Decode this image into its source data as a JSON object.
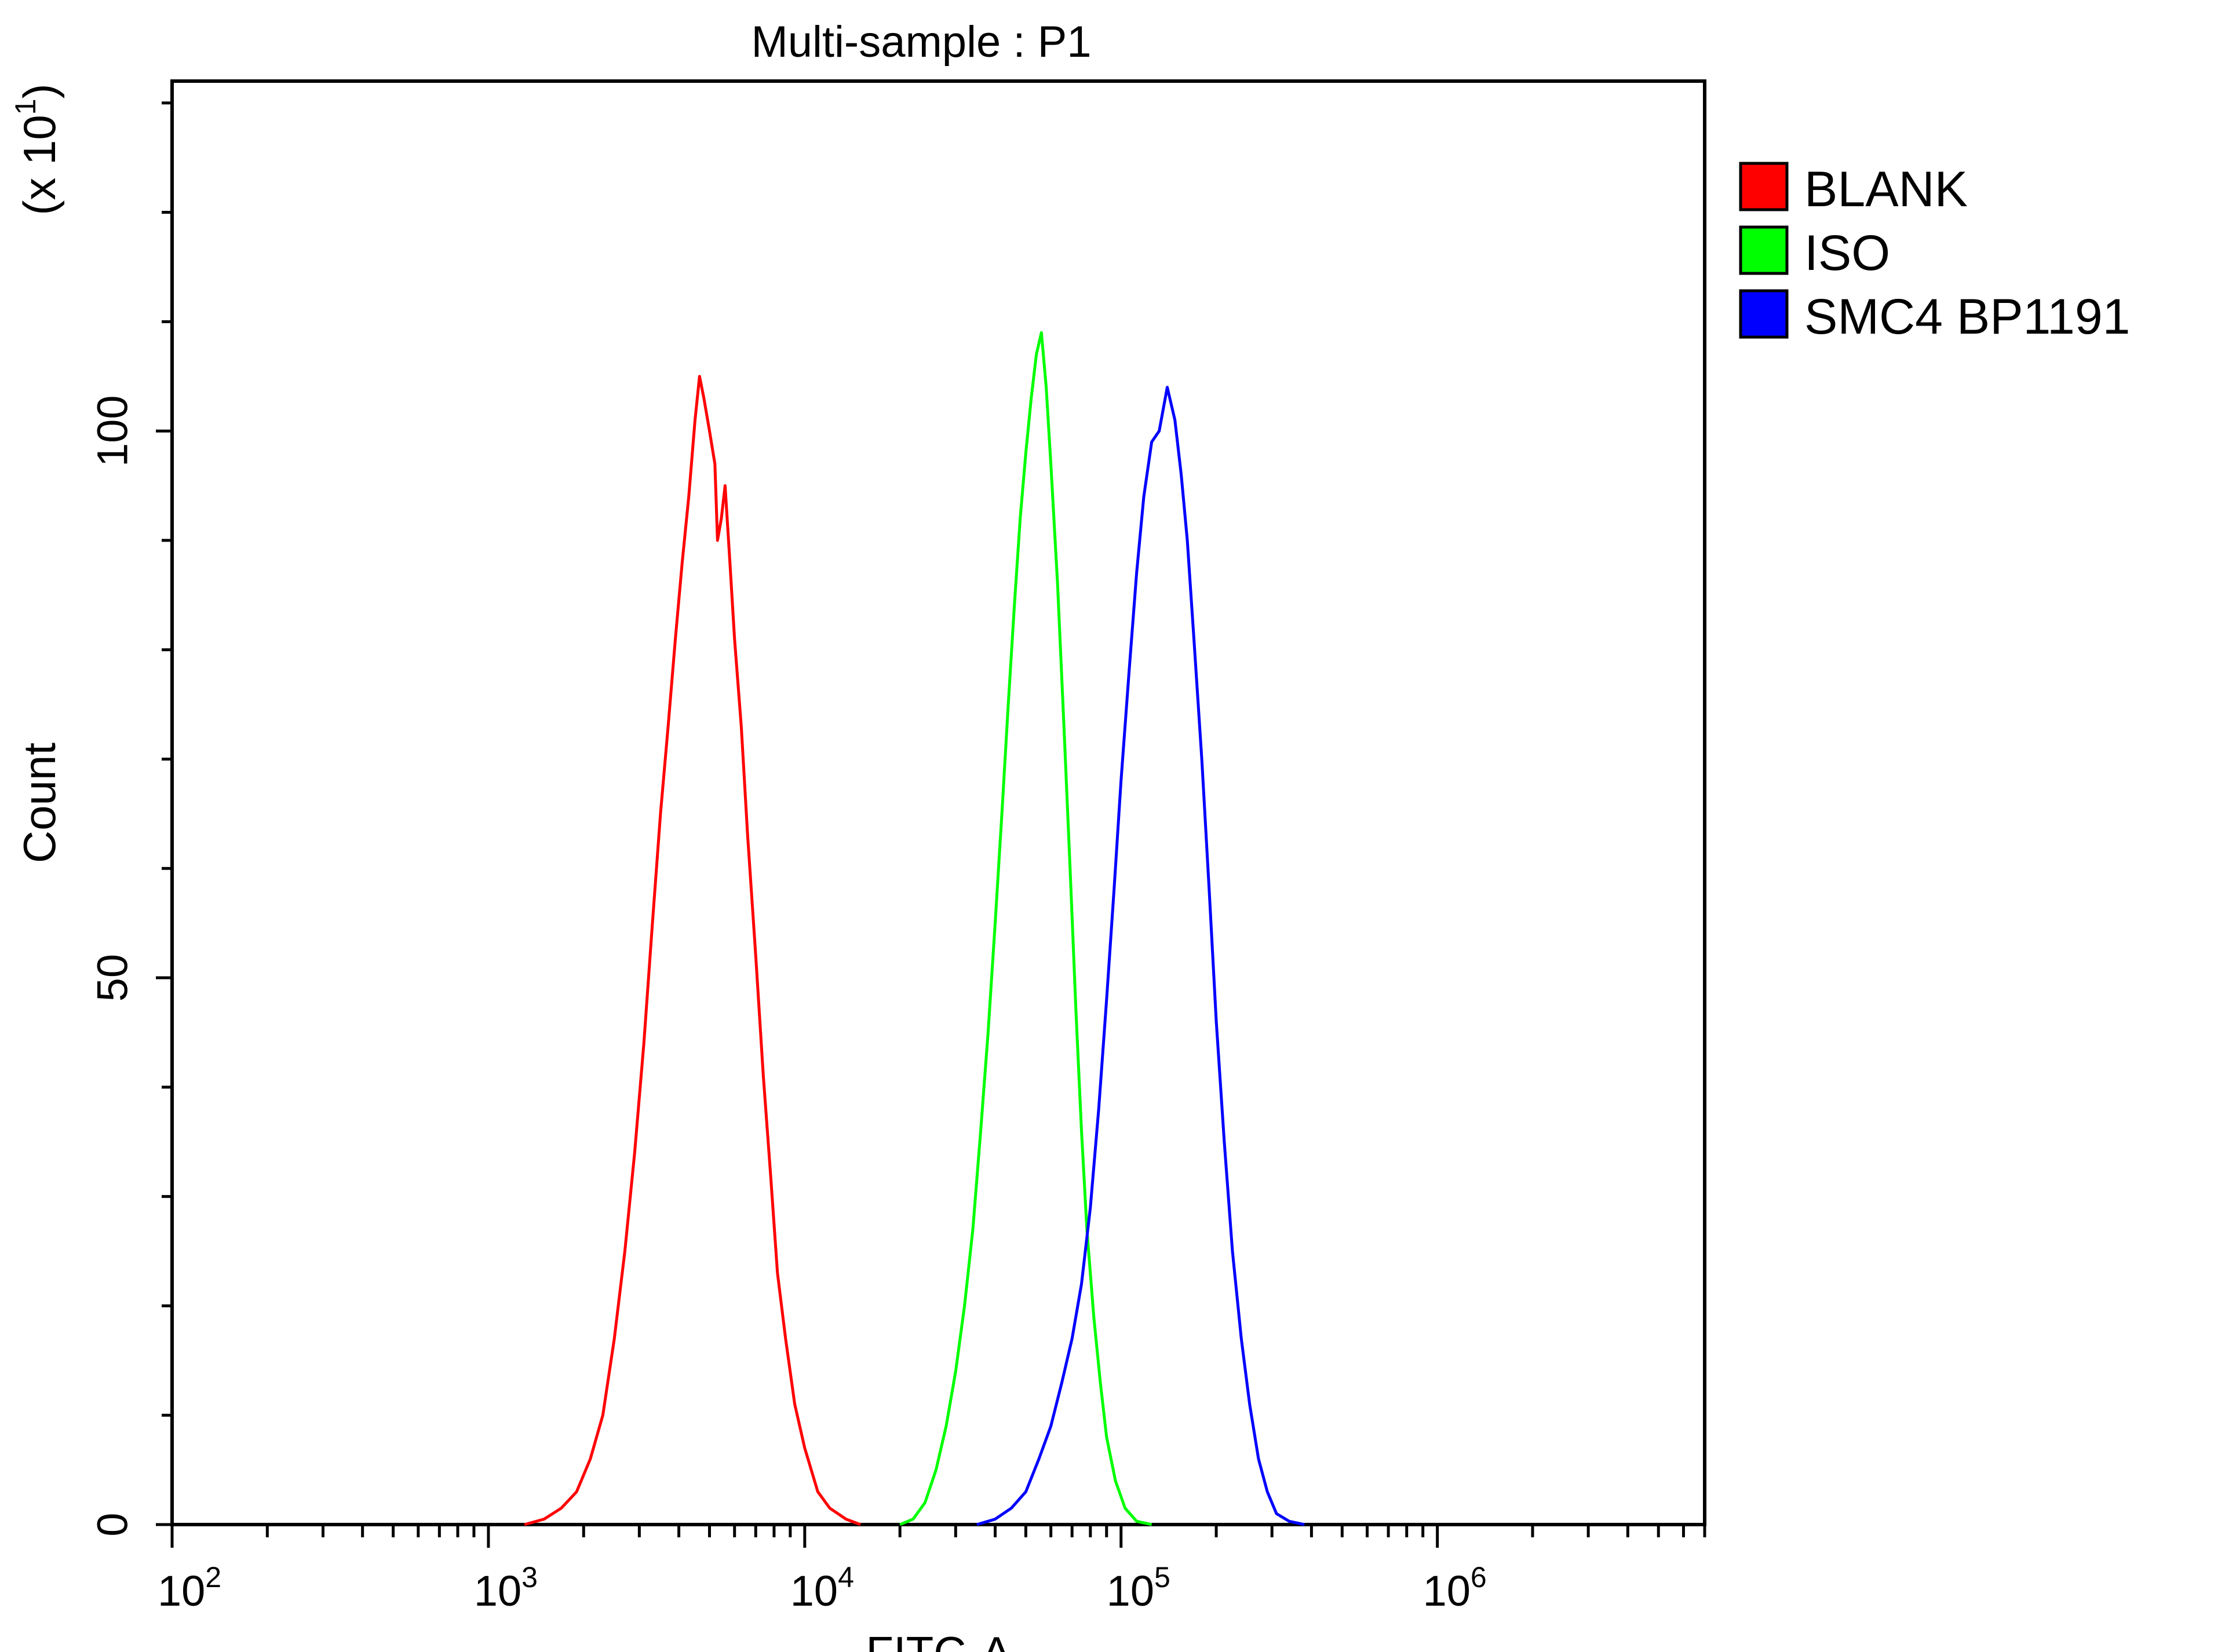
{
  "chart_data": {
    "type": "line",
    "title": "Multi-sample : P1",
    "xlabel": "FITC-A",
    "ylabel": "Count",
    "y_multiplier": "(x 10",
    "y_multiplier_exp": "1",
    "y_multiplier_close": ")",
    "x_scale": "log",
    "xlim": [
      100,
      7000000
    ],
    "ylim": [
      0,
      132
    ],
    "y_tick_labels": [
      "0",
      "50",
      "100"
    ],
    "y_tick_values": [
      0,
      50,
      100
    ],
    "x_tick_labels": [
      {
        "base": "10",
        "exp": "2",
        "value": 100
      },
      {
        "base": "10",
        "exp": "3",
        "value": 1000
      },
      {
        "base": "10",
        "exp": "4",
        "value": 10000
      },
      {
        "base": "10",
        "exp": "5",
        "value": 100000
      },
      {
        "base": "10",
        "exp": "6",
        "value": 1000000
      }
    ],
    "legend_position": "right-top",
    "grid": false,
    "series": [
      {
        "name": "BLANK",
        "color": "#ff0000",
        "points": [
          [
            1300,
            0
          ],
          [
            1500,
            0.5
          ],
          [
            1700,
            1.5
          ],
          [
            1900,
            3
          ],
          [
            2100,
            6
          ],
          [
            2300,
            10
          ],
          [
            2500,
            17
          ],
          [
            2700,
            25
          ],
          [
            2900,
            34
          ],
          [
            3100,
            44
          ],
          [
            3300,
            55
          ],
          [
            3500,
            65
          ],
          [
            3700,
            73
          ],
          [
            3900,
            81
          ],
          [
            4100,
            88
          ],
          [
            4300,
            94
          ],
          [
            4500,
            101
          ],
          [
            4650,
            105
          ],
          [
            4800,
            103
          ],
          [
            5000,
            100
          ],
          [
            5200,
            97
          ],
          [
            5300,
            90
          ],
          [
            5450,
            92
          ],
          [
            5600,
            95
          ],
          [
            5800,
            88
          ],
          [
            6000,
            81
          ],
          [
            6300,
            73
          ],
          [
            6600,
            63
          ],
          [
            7000,
            52
          ],
          [
            7400,
            41
          ],
          [
            7800,
            32
          ],
          [
            8200,
            23
          ],
          [
            8700,
            17
          ],
          [
            9300,
            11
          ],
          [
            10000,
            7
          ],
          [
            11000,
            3
          ],
          [
            12000,
            1.5
          ],
          [
            13500,
            0.5
          ],
          [
            15000,
            0
          ]
        ]
      },
      {
        "name": "ISO",
        "color": "#00ff00",
        "points": [
          [
            20000,
            0
          ],
          [
            22000,
            0.5
          ],
          [
            24000,
            2
          ],
          [
            26000,
            5
          ],
          [
            28000,
            9
          ],
          [
            30000,
            14
          ],
          [
            32000,
            20
          ],
          [
            34000,
            27
          ],
          [
            36000,
            36
          ],
          [
            38000,
            45
          ],
          [
            40000,
            55
          ],
          [
            42000,
            65
          ],
          [
            44000,
            75
          ],
          [
            46000,
            84
          ],
          [
            48000,
            92
          ],
          [
            50000,
            98
          ],
          [
            52000,
            103
          ],
          [
            54000,
            107
          ],
          [
            56000,
            109
          ],
          [
            58000,
            104
          ],
          [
            60000,
            97
          ],
          [
            63000,
            86
          ],
          [
            66000,
            73
          ],
          [
            69000,
            60
          ],
          [
            72000,
            47
          ],
          [
            75000,
            36
          ],
          [
            78000,
            27
          ],
          [
            82000,
            19
          ],
          [
            86000,
            13
          ],
          [
            90000,
            8
          ],
          [
            96000,
            4
          ],
          [
            103000,
            1.5
          ],
          [
            112000,
            0.3
          ],
          [
            125000,
            0
          ]
        ]
      },
      {
        "name": "SMC4 BP1191",
        "color": "#0000ff",
        "points": [
          [
            35000,
            0
          ],
          [
            40000,
            0.5
          ],
          [
            45000,
            1.5
          ],
          [
            50000,
            3
          ],
          [
            55000,
            6
          ],
          [
            60000,
            9
          ],
          [
            65000,
            13
          ],
          [
            70000,
            17
          ],
          [
            75000,
            22
          ],
          [
            80000,
            29
          ],
          [
            85000,
            38
          ],
          [
            90000,
            48
          ],
          [
            95000,
            58
          ],
          [
            100000,
            68
          ],
          [
            106000,
            78
          ],
          [
            112000,
            87
          ],
          [
            118000,
            94
          ],
          [
            125000,
            99
          ],
          [
            132000,
            100
          ],
          [
            140000,
            104
          ],
          [
            148000,
            101
          ],
          [
            155000,
            96
          ],
          [
            162000,
            90
          ],
          [
            170000,
            81
          ],
          [
            180000,
            70
          ],
          [
            190000,
            58
          ],
          [
            200000,
            46
          ],
          [
            212000,
            35
          ],
          [
            225000,
            25
          ],
          [
            240000,
            17
          ],
          [
            255000,
            11
          ],
          [
            272000,
            6
          ],
          [
            290000,
            3
          ],
          [
            310000,
            1
          ],
          [
            340000,
            0.3
          ],
          [
            380000,
            0
          ]
        ]
      }
    ]
  }
}
